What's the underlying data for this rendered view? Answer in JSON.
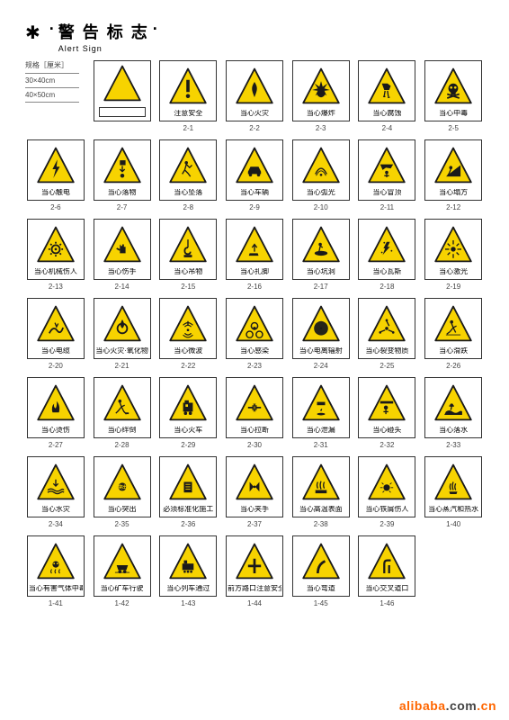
{
  "header": {
    "star": "✱",
    "title_cn": "警 告 标 志",
    "title_en": "Alert  Sign",
    "dot": "·"
  },
  "spec": {
    "heading": "规格［厘米］",
    "size1": "30×40cm",
    "size2": "40×50cm"
  },
  "style": {
    "triangle_fill": "#f7d300",
    "triangle_stroke": "#1a1a1a",
    "triangle_stroke_width": 4,
    "icon_color": "#1a1a1a"
  },
  "watermark": {
    "a": "alibaba",
    "b": ".com",
    "c": ".cn"
  },
  "signs": [
    {
      "code": "",
      "label": "",
      "glyph": "blank"
    },
    {
      "code": "",
      "label": "",
      "glyph": "plain"
    },
    {
      "code": "2-1",
      "label": "注意安全",
      "glyph": "exclaim"
    },
    {
      "code": "2-2",
      "label": "当心火灾",
      "glyph": "fire"
    },
    {
      "code": "2-3",
      "label": "当心爆炸",
      "glyph": "explode"
    },
    {
      "code": "2-4",
      "label": "当心腐蚀",
      "glyph": "corrode"
    },
    {
      "code": "2-5",
      "label": "当心中毒",
      "glyph": "skull"
    },
    {
      "code": "2-6",
      "label": "当心触电",
      "glyph": "bolt"
    },
    {
      "code": "2-7",
      "label": "当心落物",
      "glyph": "fallobj"
    },
    {
      "code": "2-8",
      "label": "当心坠落",
      "glyph": "fallman"
    },
    {
      "code": "2-9",
      "label": "当心车辆",
      "glyph": "car"
    },
    {
      "code": "2-10",
      "label": "当心弧光",
      "glyph": "arc"
    },
    {
      "code": "2-11",
      "label": "当心冒顶",
      "glyph": "roof"
    },
    {
      "code": "2-12",
      "label": "当心塌方",
      "glyph": "slide"
    },
    {
      "code": "2-13",
      "label": "当心机械伤人",
      "glyph": "gear"
    },
    {
      "code": "2-14",
      "label": "当心伤手",
      "glyph": "hand"
    },
    {
      "code": "2-15",
      "label": "当心吊物",
      "glyph": "hook"
    },
    {
      "code": "2-16",
      "label": "当心扎脚",
      "glyph": "foot"
    },
    {
      "code": "2-17",
      "label": "当心坑洞",
      "glyph": "pit"
    },
    {
      "code": "2-18",
      "label": "当心瓦斯",
      "glyph": "gas"
    },
    {
      "code": "2-19",
      "label": "当心激光",
      "glyph": "laser"
    },
    {
      "code": "2-20",
      "label": "当心电缆",
      "glyph": "cable"
    },
    {
      "code": "2-21",
      "label": "当心火灾·氧化物",
      "glyph": "oxid"
    },
    {
      "code": "2-22",
      "label": "当心微波",
      "glyph": "micro"
    },
    {
      "code": "2-23",
      "label": "当心感染",
      "glyph": "bio"
    },
    {
      "code": "2-24",
      "label": "当心电离辐射",
      "glyph": "rad"
    },
    {
      "code": "2-25",
      "label": "当心裂变物质",
      "glyph": "fission"
    },
    {
      "code": "2-26",
      "label": "当心滑跌",
      "glyph": "slip"
    },
    {
      "code": "2-27",
      "label": "当心烫伤",
      "glyph": "burn"
    },
    {
      "code": "2-28",
      "label": "当心绊倒",
      "glyph": "trip"
    },
    {
      "code": "2-29",
      "label": "当心火车",
      "glyph": "train"
    },
    {
      "code": "2-30",
      "label": "当心拉断",
      "glyph": "snap"
    },
    {
      "code": "2-31",
      "label": "当心泄漏",
      "glyph": "leak"
    },
    {
      "code": "2-32",
      "label": "当心碰头",
      "glyph": "head"
    },
    {
      "code": "2-33",
      "label": "当心落水",
      "glyph": "drown"
    },
    {
      "code": "2-34",
      "label": "当心水灾",
      "glyph": "flood"
    },
    {
      "code": "2-35",
      "label": "当心突出",
      "glyph": "burst"
    },
    {
      "code": "2-36",
      "label": "必须标准化施工",
      "glyph": "std"
    },
    {
      "code": "2-37",
      "label": "当心夹手",
      "glyph": "pinch"
    },
    {
      "code": "2-38",
      "label": "当心高温表面",
      "glyph": "hot"
    },
    {
      "code": "2-39",
      "label": "当心铁屑伤人",
      "glyph": "chips"
    },
    {
      "code": "1-40",
      "label": "当心蒸汽和热水",
      "glyph": "steam"
    },
    {
      "code": "1-41",
      "label": "当心有害气体中毒",
      "glyph": "toxgas"
    },
    {
      "code": "1-42",
      "label": "当心矿车行驶",
      "glyph": "cart"
    },
    {
      "code": "1-43",
      "label": "当心列车通过",
      "glyph": "loco"
    },
    {
      "code": "1-44",
      "label": "前方路口注意安全",
      "glyph": "cross"
    },
    {
      "code": "1-45",
      "label": "当心弯道",
      "glyph": "curve"
    },
    {
      "code": "1-46",
      "label": "当心交叉道口",
      "glyph": "merge"
    }
  ]
}
